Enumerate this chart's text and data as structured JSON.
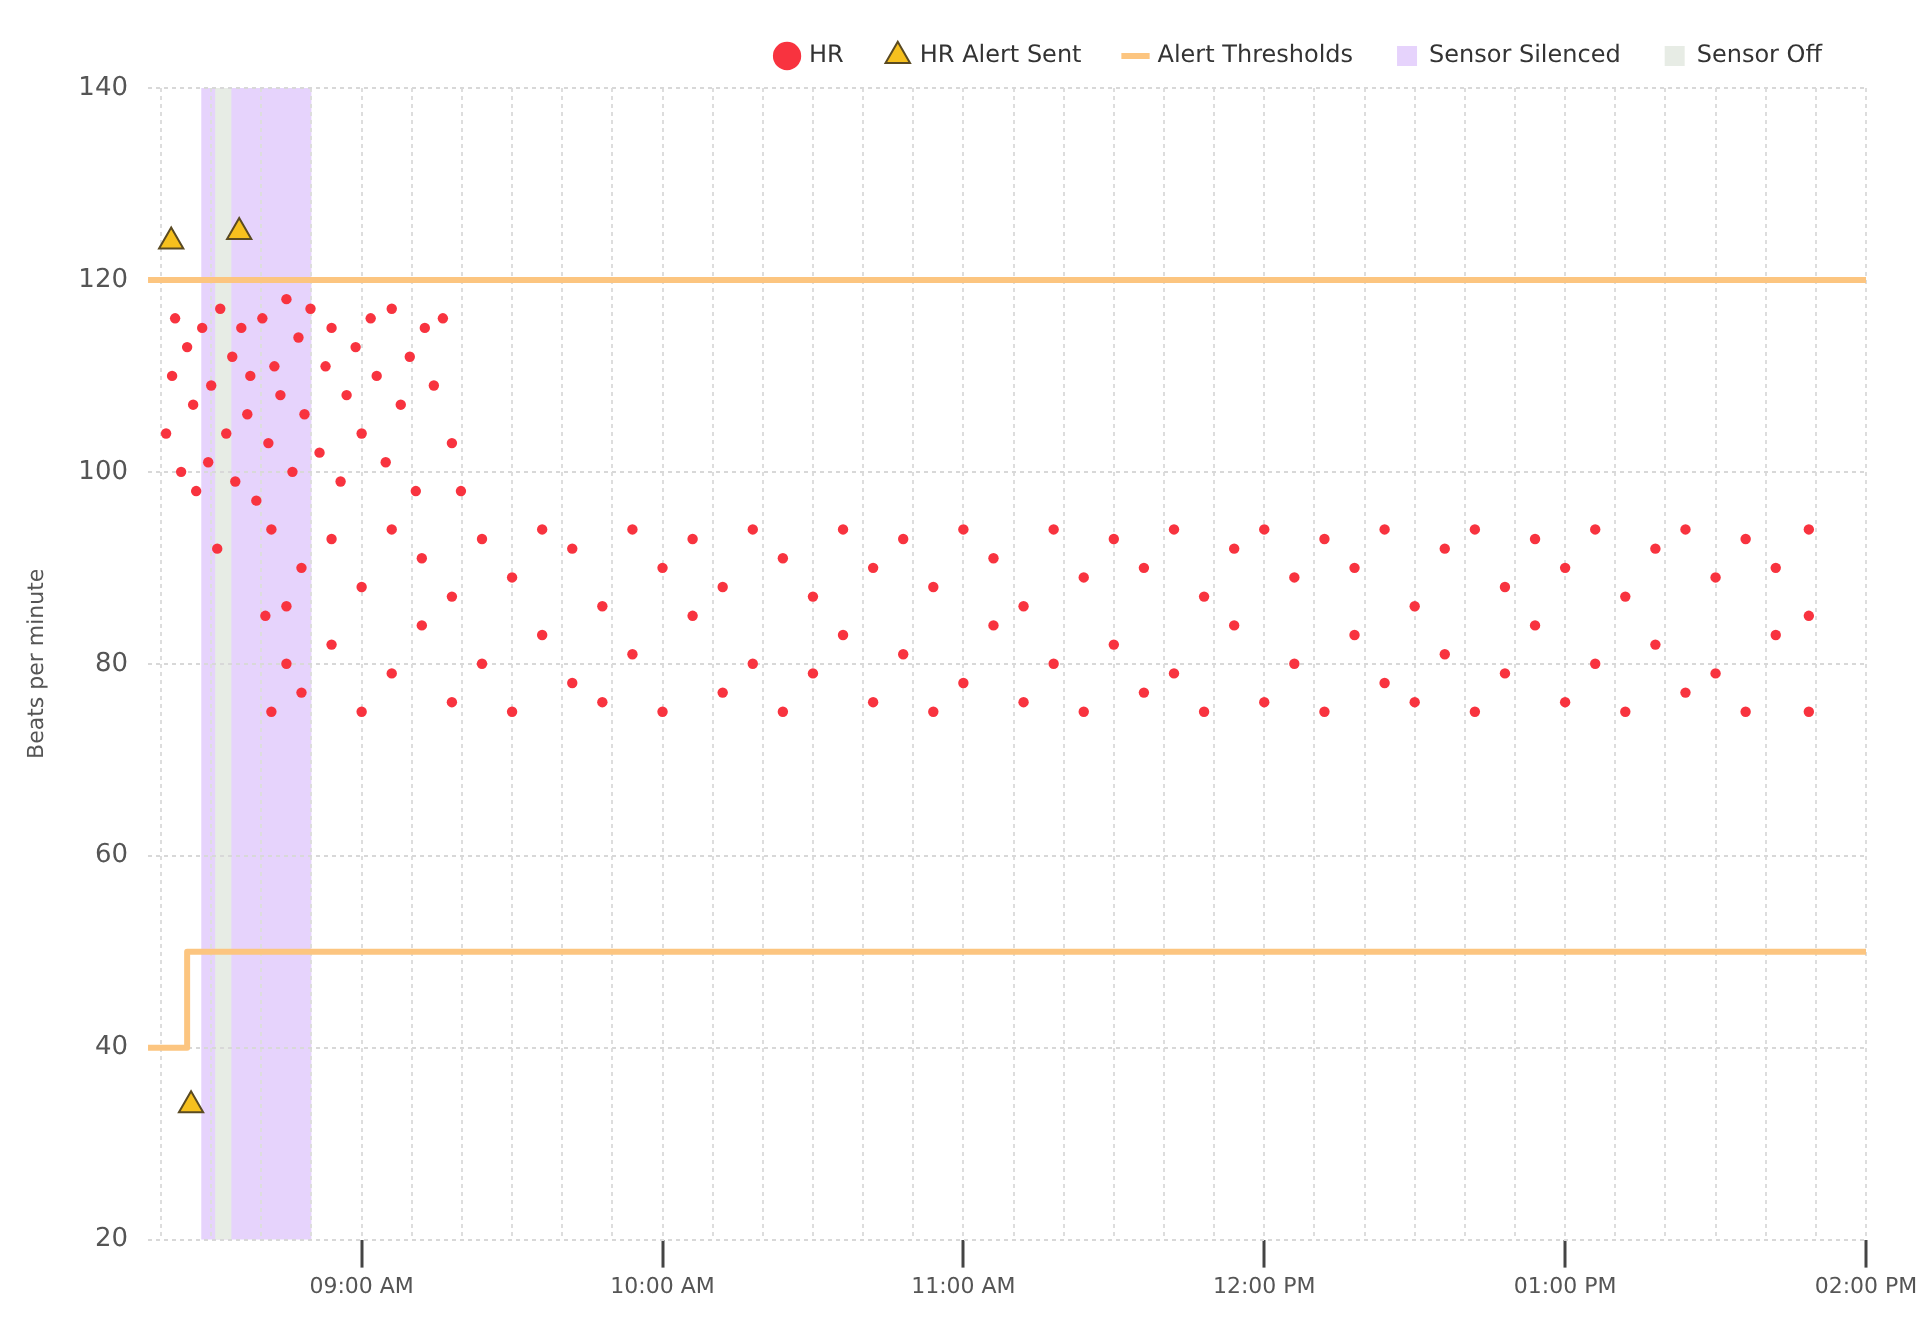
{
  "chart_data": {
    "type": "scatter",
    "ylabel": "Beats per minute",
    "legend": "top right",
    "grid": true,
    "xlim": [
      8.29,
      14.0
    ],
    "xticks": [
      {
        "value": 8.3333,
        "label": null
      },
      {
        "value": 8.5,
        "label": null
      },
      {
        "value": 8.6667,
        "label": null
      },
      {
        "value": 8.8333,
        "label": null
      },
      {
        "value": 9,
        "label": "09:00 AM"
      },
      {
        "value": 9.1667,
        "label": null
      },
      {
        "value": 9.3333,
        "label": null
      },
      {
        "value": 9.5,
        "label": null
      },
      {
        "value": 9.6667,
        "label": null
      },
      {
        "value": 9.8333,
        "label": null
      },
      {
        "value": 10,
        "label": "10:00 AM"
      },
      {
        "value": 10.1667,
        "label": null
      },
      {
        "value": 10.3333,
        "label": null
      },
      {
        "value": 10.5,
        "label": null
      },
      {
        "value": 10.6667,
        "label": null
      },
      {
        "value": 10.8333,
        "label": null
      },
      {
        "value": 11,
        "label": "11:00 AM"
      },
      {
        "value": 11.1667,
        "label": null
      },
      {
        "value": 11.3333,
        "label": null
      },
      {
        "value": 11.5,
        "label": null
      },
      {
        "value": 11.6667,
        "label": null
      },
      {
        "value": 11.8333,
        "label": null
      },
      {
        "value": 12,
        "label": "12:00 PM"
      },
      {
        "value": 12.1667,
        "label": null
      },
      {
        "value": 12.3333,
        "label": null
      },
      {
        "value": 12.5,
        "label": null
      },
      {
        "value": 12.6667,
        "label": null
      },
      {
        "value": 12.8333,
        "label": null
      },
      {
        "value": 13,
        "label": "01:00 PM"
      },
      {
        "value": 13.1667,
        "label": null
      },
      {
        "value": 13.3333,
        "label": null
      },
      {
        "value": 13.5,
        "label": null
      },
      {
        "value": 13.6667,
        "label": null
      },
      {
        "value": 13.8333,
        "label": null
      },
      {
        "value": 14,
        "label": "02:00 PM"
      }
    ],
    "ylim": [
      20,
      140
    ],
    "yticks": [
      20,
      40,
      60,
      80,
      100,
      120,
      140
    ],
    "bands": [
      {
        "axis": "x",
        "from": 8.467,
        "to": 8.833,
        "label": "Sensor Silenced",
        "color": "#e6d3fc"
      },
      {
        "axis": "x",
        "from": 8.513,
        "to": 8.567,
        "label": "Sensor Off",
        "color": "#e7ece5"
      }
    ],
    "series": [
      {
        "name": "HR",
        "marker": "circle",
        "color": "#f8333f",
        "x": [
          8.35,
          8.37,
          8.38,
          8.4,
          8.42,
          8.44,
          8.45,
          8.47,
          8.49,
          8.5,
          8.52,
          8.53,
          8.55,
          8.57,
          8.58,
          8.6,
          8.62,
          8.63,
          8.65,
          8.67,
          8.69,
          8.71,
          8.73,
          8.75,
          8.77,
          8.79,
          8.81,
          8.83,
          8.86,
          8.88,
          8.9,
          8.93,
          8.95,
          8.98,
          9,
          9.03,
          9.05,
          9.08,
          9.1,
          9.13,
          9.16,
          9.18,
          9.21,
          9.24,
          9.27,
          9.3,
          9.33,
          8.68,
          8.7,
          8.7,
          8.75,
          8.75,
          8.8,
          8.8,
          8.9,
          8.9,
          9,
          9,
          9.1,
          9.1,
          9.2,
          9.2,
          9.3,
          9.3,
          9.4,
          9.4,
          9.5,
          9.5,
          9.6,
          9.6,
          9.7,
          9.7,
          9.8,
          9.8,
          9.9,
          9.9,
          10,
          10,
          10.1,
          10.1,
          10.2,
          10.2,
          10.3,
          10.3,
          10.4,
          10.4,
          10.5,
          10.5,
          10.6,
          10.6,
          10.7,
          10.7,
          10.8,
          10.8,
          10.9,
          10.9,
          11,
          11,
          11.1,
          11.1,
          11.2,
          11.2,
          11.3,
          11.3,
          11.4,
          11.4,
          11.5,
          11.5,
          11.6,
          11.6,
          11.7,
          11.7,
          11.8,
          11.8,
          11.9,
          11.9,
          12,
          12,
          12.1,
          12.1,
          12.2,
          12.2,
          12.3,
          12.3,
          12.4,
          12.4,
          12.5,
          12.5,
          12.6,
          12.6,
          12.7,
          12.7,
          12.8,
          12.8,
          12.9,
          12.9,
          13,
          13,
          13.1,
          13.1,
          13.2,
          13.2,
          13.3,
          13.3,
          13.4,
          13.4,
          13.5,
          13.5,
          13.6,
          13.6,
          13.7,
          13.7,
          13.81,
          13.81,
          13.81
        ],
        "values": [
          104,
          110,
          116,
          100,
          113,
          107,
          98,
          115,
          101,
          109,
          92,
          117,
          104,
          112,
          99,
          115,
          106,
          110,
          97,
          116,
          103,
          111,
          108,
          118,
          100,
          114,
          106,
          117,
          102,
          111,
          115,
          99,
          108,
          113,
          104,
          116,
          110,
          101,
          117,
          107,
          112,
          98,
          115,
          109,
          116,
          103,
          98,
          85,
          94,
          75,
          86,
          80,
          90,
          77,
          93,
          82,
          88,
          75,
          94,
          79,
          91,
          84,
          87,
          76,
          93,
          80,
          89,
          75,
          94,
          83,
          92,
          78,
          86,
          76,
          94,
          81,
          90,
          75,
          93,
          85,
          88,
          77,
          94,
          80,
          91,
          75,
          87,
          79,
          94,
          83,
          90,
          76,
          93,
          81,
          88,
          75,
          94,
          78,
          91,
          84,
          86,
          76,
          94,
          80,
          89,
          75,
          93,
          82,
          90,
          77,
          94,
          79,
          87,
          75,
          92,
          84,
          94,
          76,
          89,
          80,
          93,
          75,
          90,
          83,
          94,
          78,
          86,
          76,
          92,
          81,
          94,
          75,
          88,
          79,
          93,
          84,
          90,
          76,
          94,
          80,
          87,
          75,
          92,
          82,
          94,
          77,
          89,
          79,
          93,
          75,
          90,
          83,
          94,
          75,
          85
        ]
      },
      {
        "name": "HR Alert Sent",
        "marker": "triangle",
        "color": "#f6c01e",
        "x": [
          8.367,
          8.593,
          8.433
        ],
        "values": [
          124,
          125,
          34
        ]
      },
      {
        "type": "line",
        "color": "#fcc580",
        "x": [
          8.29,
          14.0
        ],
        "values": [
          120,
          120
        ]
      },
      {
        "name": "Alert Thresholds",
        "type": "step",
        "color": "#fcc580",
        "x": [
          8.29,
          8.42,
          14.0
        ],
        "values": [
          40,
          50,
          50
        ]
      }
    ]
  }
}
